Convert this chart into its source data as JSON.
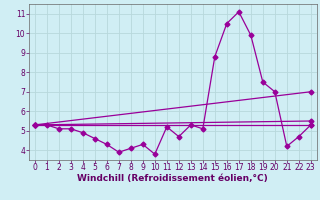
{
  "bg_color": "#d0eef4",
  "grid_color": "#b8d8dc",
  "line_color": "#990099",
  "marker": "D",
  "markersize": 2.5,
  "linewidth": 0.9,
  "xlabel": "Windchill (Refroidissement éolien,°C)",
  "xlabel_color": "#660066",
  "xlabel_fontsize": 6.5,
  "tick_color": "#660066",
  "tick_fontsize": 5.5,
  "xlim": [
    -0.5,
    23.5
  ],
  "ylim": [
    3.5,
    11.5
  ],
  "yticks": [
    4,
    5,
    6,
    7,
    8,
    9,
    10,
    11
  ],
  "xticks": [
    0,
    1,
    2,
    3,
    4,
    5,
    6,
    7,
    8,
    9,
    10,
    11,
    12,
    13,
    14,
    15,
    16,
    17,
    18,
    19,
    20,
    21,
    22,
    23
  ],
  "series1_x": [
    0,
    1,
    2,
    3,
    4,
    5,
    6,
    7,
    8,
    9,
    10,
    11,
    12,
    13,
    14,
    15,
    16,
    17,
    18,
    19,
    20,
    21,
    22,
    23
  ],
  "series1_y": [
    5.3,
    5.3,
    5.1,
    5.1,
    4.9,
    4.6,
    4.3,
    3.9,
    4.1,
    4.3,
    3.8,
    5.2,
    4.7,
    5.3,
    5.1,
    8.8,
    10.5,
    11.1,
    9.9,
    7.5,
    7.0,
    4.2,
    4.7,
    5.3
  ],
  "series2_x": [
    0,
    23
  ],
  "series2_y": [
    5.3,
    5.3
  ],
  "series3_x": [
    0,
    23
  ],
  "series3_y": [
    5.3,
    7.0
  ],
  "series4_x": [
    0,
    23
  ],
  "series4_y": [
    5.3,
    5.5
  ]
}
